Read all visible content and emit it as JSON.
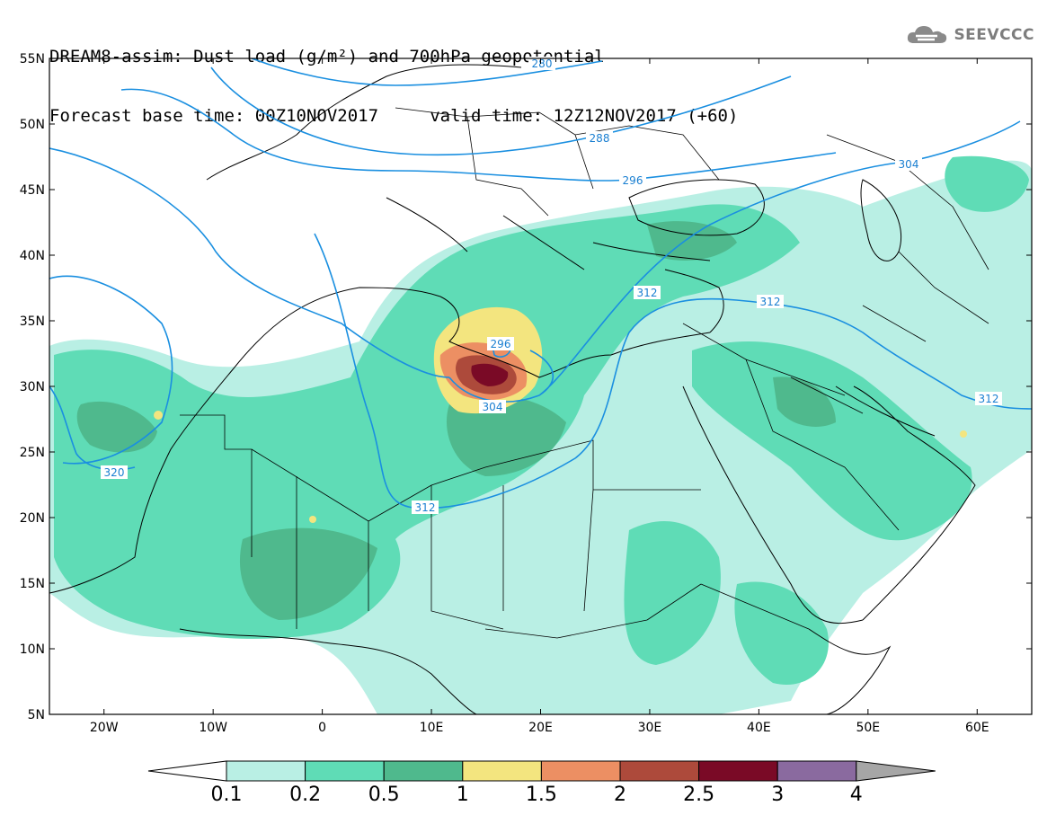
{
  "title": {
    "line1": "DREAM8-assim: Dust load (g/m²) and 700hPa geopotential",
    "line2": "Forecast base time: 00Z10NOV2017     valid time: 12Z12NOV2017 (+60)"
  },
  "logo": {
    "icon": "cloud-icon",
    "text": "SEEVCCC"
  },
  "map": {
    "lat_labels": [
      "55N",
      "50N",
      "45N",
      "40N",
      "35N",
      "30N",
      "25N",
      "20N",
      "15N",
      "10N",
      "5N"
    ],
    "lat_values": [
      55,
      50,
      45,
      40,
      35,
      30,
      25,
      20,
      15,
      10,
      5
    ],
    "lon_labels": [
      "20W",
      "10W",
      "0",
      "10E",
      "20E",
      "30E",
      "40E",
      "50E",
      "60E"
    ],
    "lon_values": [
      -20,
      -10,
      0,
      10,
      20,
      30,
      40,
      50,
      60
    ],
    "extent": {
      "lon": [
        -25,
        65
      ],
      "lat": [
        5,
        55
      ]
    },
    "contour_labels": [
      "280",
      "288",
      "296",
      "304",
      "312",
      "312",
      "312",
      "320",
      "296",
      "304",
      "312"
    ],
    "contour_color": "#1a8fe0"
  },
  "colorbar": {
    "labels": [
      "0.1",
      "0.2",
      "0.5",
      "1",
      "1.5",
      "2",
      "2.5",
      "3",
      "4"
    ],
    "colors": [
      "#b9efe4",
      "#5fdcb6",
      "#4fb98d",
      "#f3e57f",
      "#ec8f63",
      "#ad4a3b",
      "#7a0a26",
      "#8a6a9f",
      "#a6a6a6"
    ]
  }
}
